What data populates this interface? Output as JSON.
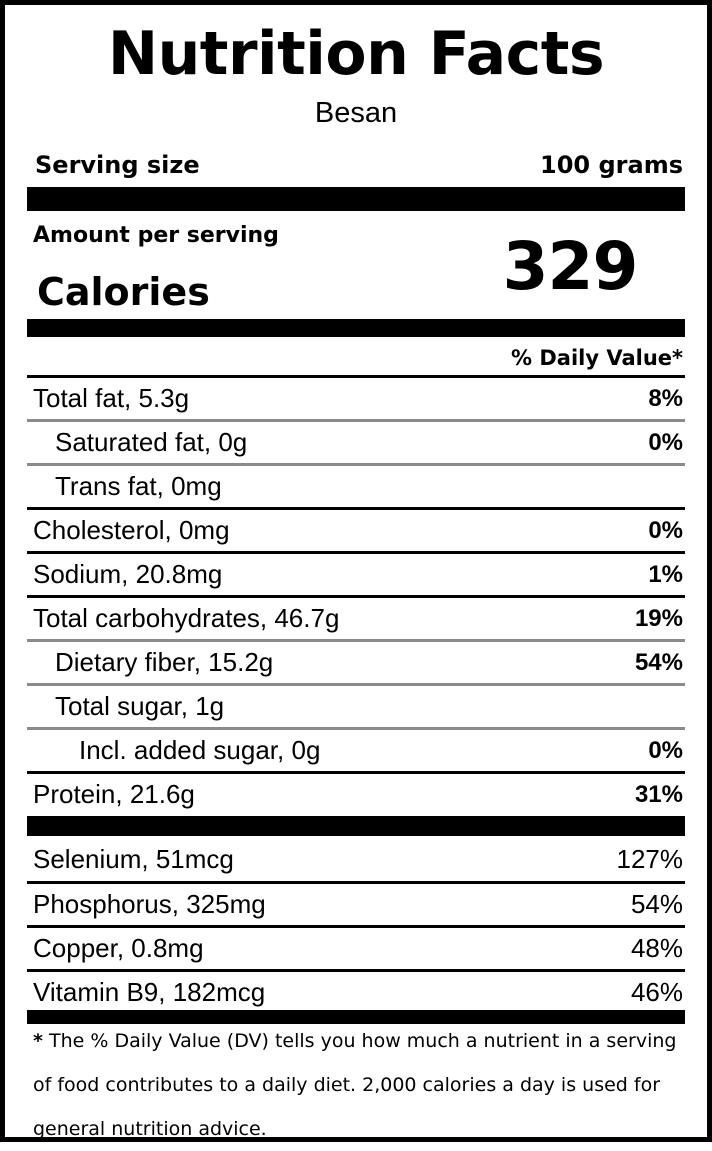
{
  "label": {
    "title": "Nutrition Facts",
    "food_name": "Besan",
    "serving_size_label": "Serving size",
    "serving_size_value": "100 grams",
    "amount_per_serving": "Amount per serving",
    "calories_label": "Calories",
    "calories_value": "329",
    "daily_value_header": "% Daily Value*",
    "nutrients": [
      {
        "name": "Total fat, 5.3g",
        "dv": "8%"
      },
      {
        "name": "Saturated fat, 0g",
        "dv": "0%"
      },
      {
        "name": "Trans fat, 0mg",
        "dv": ""
      },
      {
        "name": "Cholesterol, 0mg",
        "dv": "0%"
      },
      {
        "name": "Sodium, 20.8mg",
        "dv": "1%"
      },
      {
        "name": "Total carbohydrates, 46.7g",
        "dv": "19%"
      },
      {
        "name": "Dietary fiber, 15.2g",
        "dv": "54%"
      },
      {
        "name": "Total sugar, 1g",
        "dv": ""
      },
      {
        "name": "Incl. added sugar, 0g",
        "dv": "0%"
      },
      {
        "name": "Protein, 21.6g",
        "dv": "31%"
      }
    ],
    "vitamins": [
      {
        "name": "Selenium, 51mcg",
        "dv": "127%"
      },
      {
        "name": "Phosphorus, 325mg",
        "dv": "54%"
      },
      {
        "name": "Copper, 0.8mg",
        "dv": "48%"
      },
      {
        "name": "Vitamin B9, 182mcg",
        "dv": "46%"
      }
    ],
    "footnote_star": "*",
    "footnote_text": "The % Daily Value (DV) tells you how much a nutrient in a serving of food contributes to a daily diet. 2,000 calories a day is used for general nutrition advice."
  },
  "colors": {
    "text": "#000000",
    "background": "#ffffff",
    "thin_divider": "#8a8a8a"
  }
}
